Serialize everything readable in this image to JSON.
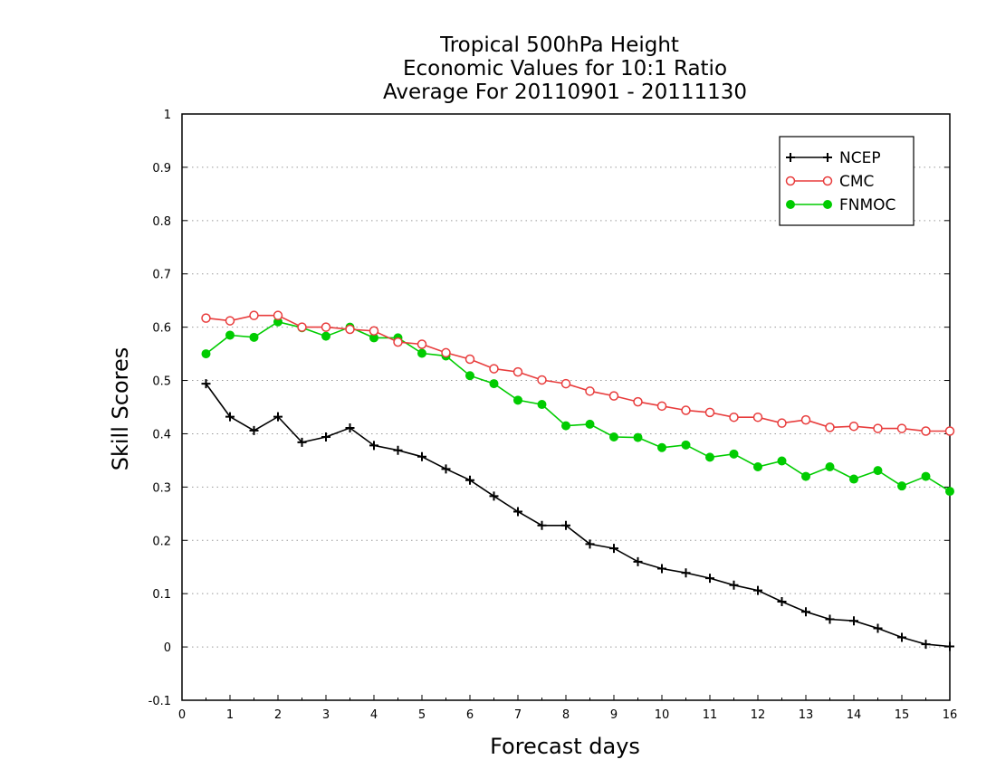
{
  "chart_data": {
    "type": "line",
    "title": [
      "Tropical 500hPa Height",
      "Economic Values for 10:1 Ratio",
      "Average For 20110901 - 20111130"
    ],
    "xlabel": "Forecast days",
    "ylabel": "Skill Scores",
    "xlim": [
      0,
      16
    ],
    "ylim": [
      -0.1,
      1
    ],
    "xticks": [
      "0",
      "1",
      "2",
      "3",
      "4",
      "5",
      "6",
      "7",
      "8",
      "9",
      "10",
      "11",
      "12",
      "13",
      "14",
      "15",
      "16"
    ],
    "yticks": [
      "-0.1",
      "0",
      "0.1",
      "0.2",
      "0.3",
      "0.4",
      "0.5",
      "0.6",
      "0.7",
      "0.8",
      "0.9",
      "1"
    ],
    "grid": true,
    "legend_position": "top-right",
    "x": [
      0.5,
      1,
      1.5,
      2,
      2.5,
      3,
      3.5,
      4,
      4.5,
      5,
      5.5,
      6,
      6.5,
      7,
      7.5,
      8,
      8.5,
      9,
      9.5,
      10,
      10.5,
      11,
      11.5,
      12,
      12.5,
      13,
      13.5,
      14,
      14.5,
      15,
      15.5,
      16
    ],
    "series": [
      {
        "name": "NCEP",
        "color": "#000000",
        "marker": "plus",
        "values": [
          0.494,
          0.432,
          0.406,
          0.432,
          0.384,
          0.394,
          0.411,
          0.378,
          0.369,
          0.357,
          0.334,
          0.313,
          0.283,
          0.254,
          0.228,
          0.228,
          0.193,
          0.185,
          0.16,
          0.147,
          0.139,
          0.129,
          0.116,
          0.106,
          0.085,
          0.066,
          0.052,
          0.049,
          0.035,
          0.018,
          0.005,
          0.001
        ]
      },
      {
        "name": "CMC",
        "color": "#e83c3c",
        "marker": "open-circle",
        "values": [
          0.617,
          0.612,
          0.622,
          0.622,
          0.6,
          0.6,
          0.596,
          0.593,
          0.572,
          0.568,
          0.552,
          0.54,
          0.522,
          0.516,
          0.501,
          0.494,
          0.48,
          0.471,
          0.46,
          0.452,
          0.444,
          0.44,
          0.431,
          0.431,
          0.42,
          0.426,
          0.412,
          0.414,
          0.41,
          0.41,
          0.405,
          0.405
        ]
      },
      {
        "name": "FNMOC",
        "color": "#00cc00",
        "marker": "filled-circle",
        "values": [
          0.55,
          0.585,
          0.581,
          0.61,
          0.599,
          0.583,
          0.6,
          0.58,
          0.58,
          0.551,
          0.546,
          0.509,
          0.494,
          0.463,
          0.455,
          0.415,
          0.418,
          0.394,
          0.393,
          0.374,
          0.379,
          0.356,
          0.362,
          0.338,
          0.349,
          0.32,
          0.338,
          0.315,
          0.331,
          0.302,
          0.32,
          0.292
        ]
      }
    ]
  }
}
